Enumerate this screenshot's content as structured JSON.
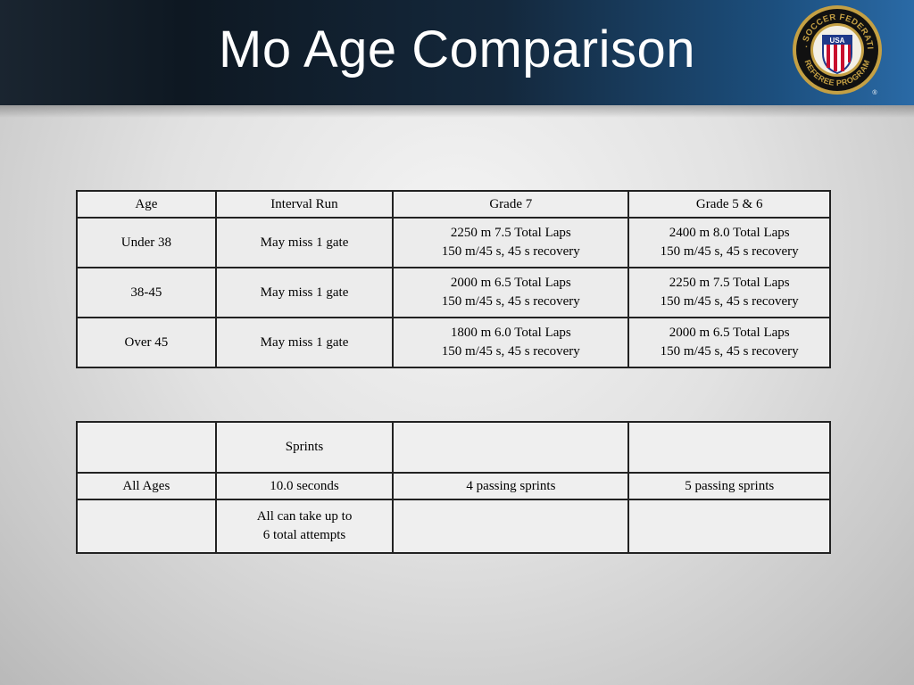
{
  "title": "Mo Age Comparison",
  "logo": {
    "ring_top_text": "U.S. SOCCER FEDERATION",
    "ring_bottom_text": "REFEREE PROGRAM",
    "shield_text": "USA",
    "registered_mark": "®",
    "colors": {
      "ring": "#c4a044",
      "dark": "#111111",
      "red": "#c8102e",
      "blue": "#1f3a8a"
    }
  },
  "table1": {
    "headers": [
      "Age",
      "Interval Run",
      "Grade 7",
      "Grade 5 & 6"
    ],
    "rows": [
      {
        "age": "Under 38",
        "interval": "May miss 1 gate",
        "grade7": [
          "2250 m 7.5 Total Laps",
          "150 m/45 s, 45 s recovery"
        ],
        "grade56": [
          "2400 m 8.0 Total Laps",
          "150 m/45 s, 45 s recovery"
        ]
      },
      {
        "age": "38-45",
        "interval": "May miss 1 gate",
        "grade7": [
          "2000 m 6.5 Total Laps",
          "150 m/45 s, 45 s recovery"
        ],
        "grade56": [
          "2250 m 7.5 Total Laps",
          "150 m/45 s, 45 s recovery"
        ]
      },
      {
        "age": "Over 45",
        "interval": "May miss 1 gate",
        "grade7": [
          "1800 m 6.0 Total Laps",
          "150 m/45 s, 45 s recovery"
        ],
        "grade56": [
          "2000 m 6.5 Total Laps",
          "150 m/45 s, 45 s recovery"
        ]
      }
    ]
  },
  "table2": {
    "header": [
      "",
      "Sprints",
      "",
      ""
    ],
    "row1": [
      "All Ages",
      "10.0 seconds",
      "4 passing sprints",
      "5 passing sprints"
    ],
    "row2": {
      "c1": "",
      "c2": [
        "All can take up to",
        "6 total attempts"
      ],
      "c3": "",
      "c4": ""
    }
  }
}
